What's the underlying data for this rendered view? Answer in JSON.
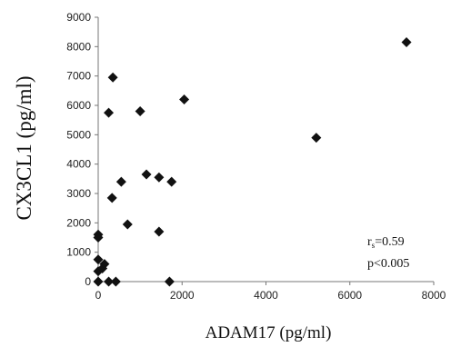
{
  "chart_data": {
    "type": "scatter",
    "xlabel": "ADAM17  (pg/ml)",
    "ylabel": "CX3CL1 (pg/ml)",
    "xlim": [
      0,
      8000
    ],
    "ylim": [
      0,
      9000
    ],
    "x_ticks": [
      0,
      2000,
      4000,
      6000,
      8000
    ],
    "y_ticks": [
      0,
      1000,
      2000,
      3000,
      4000,
      5000,
      6000,
      7000,
      8000,
      9000
    ],
    "grid": false,
    "marker": "diamond",
    "marker_color": "#111111",
    "points": [
      {
        "x": 0,
        "y": 0
      },
      {
        "x": 250,
        "y": 0
      },
      {
        "x": 420,
        "y": 0
      },
      {
        "x": 1700,
        "y": 0
      },
      {
        "x": 0,
        "y": 350
      },
      {
        "x": 100,
        "y": 450
      },
      {
        "x": 150,
        "y": 600
      },
      {
        "x": 0,
        "y": 750
      },
      {
        "x": 0,
        "y": 1500
      },
      {
        "x": 0,
        "y": 1600
      },
      {
        "x": 700,
        "y": 1950
      },
      {
        "x": 1450,
        "y": 1700
      },
      {
        "x": 330,
        "y": 2850
      },
      {
        "x": 550,
        "y": 3400
      },
      {
        "x": 1150,
        "y": 3650
      },
      {
        "x": 1450,
        "y": 3550
      },
      {
        "x": 1750,
        "y": 3400
      },
      {
        "x": 250,
        "y": 5750
      },
      {
        "x": 1000,
        "y": 5800
      },
      {
        "x": 2050,
        "y": 6200
      },
      {
        "x": 350,
        "y": 6950
      },
      {
        "x": 5200,
        "y": 4900
      },
      {
        "x": 7350,
        "y": 8150
      }
    ],
    "annotations": {
      "rs_prefix": "r",
      "rs_sub": "s",
      "rs_value": "=0.59",
      "p_value": "p<0.005"
    }
  }
}
